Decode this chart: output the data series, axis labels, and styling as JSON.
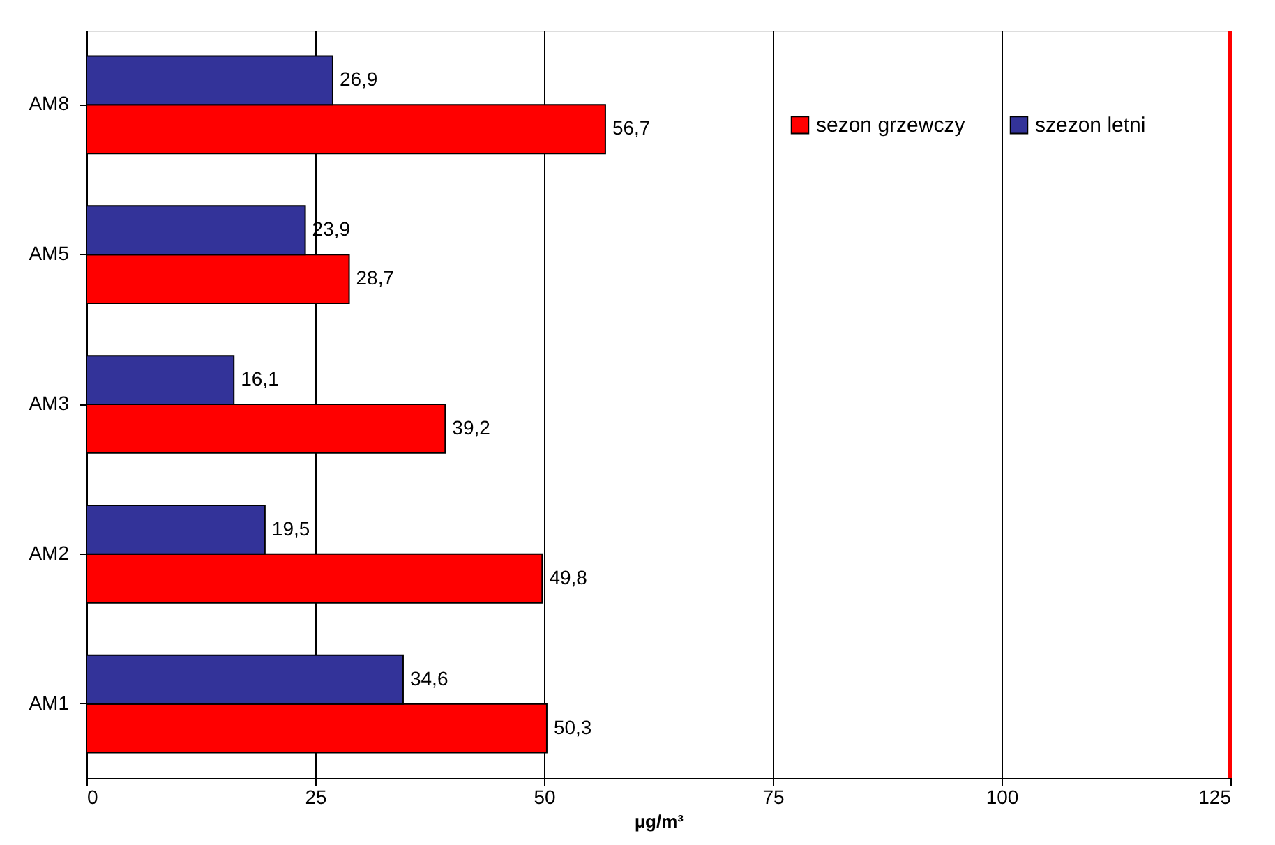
{
  "chart_data": {
    "type": "bar",
    "orientation": "horizontal",
    "categories": [
      "AM8",
      "AM5",
      "AM3",
      "AM2",
      "AM1"
    ],
    "series": [
      {
        "name": "sezon grzewczy",
        "color": "#ff0000",
        "values": [
          56.7,
          28.7,
          39.2,
          49.8,
          50.3
        ],
        "value_labels": [
          "56,7",
          "28,7",
          "39,2",
          "49,8",
          "50,3"
        ]
      },
      {
        "name": "szezon letni",
        "color": "#333399",
        "values": [
          26.9,
          23.9,
          16.1,
          19.5,
          34.6
        ],
        "value_labels": [
          "26,9",
          "23,9",
          "16,1",
          "19,5",
          "34,6"
        ]
      }
    ],
    "xlim": [
      0,
      125
    ],
    "xticks": [
      0,
      25,
      50,
      75,
      100,
      125
    ],
    "xlabel": "µg/m³",
    "grid": "x",
    "legend": "top right",
    "ref_lines": [
      {
        "axis": "x",
        "value": 125,
        "color": "#ff0000"
      }
    ]
  }
}
